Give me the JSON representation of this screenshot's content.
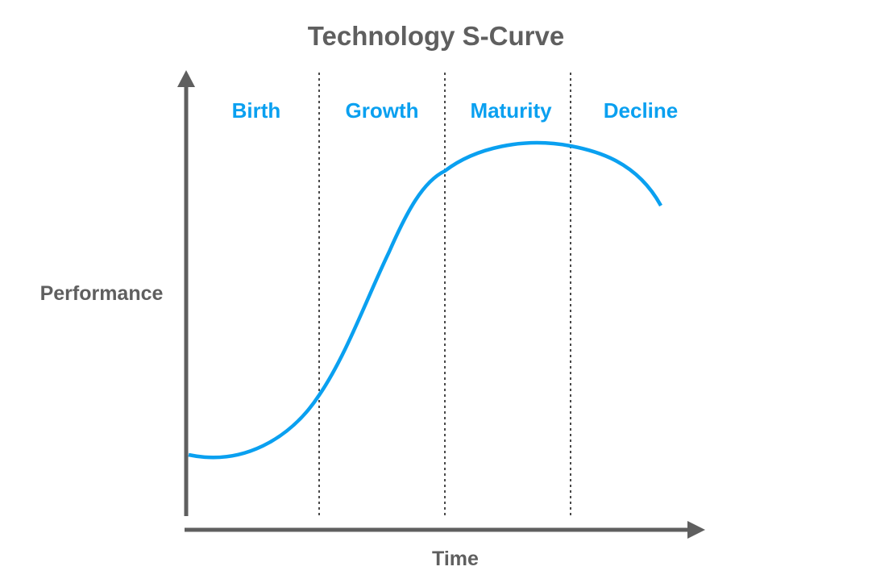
{
  "title": "Technology S-Curve",
  "x_axis_label": "Time",
  "y_axis_label": "Performance",
  "phases": [
    {
      "label": "Birth"
    },
    {
      "label": "Growth"
    },
    {
      "label": "Maturity"
    },
    {
      "label": "Decline"
    }
  ],
  "colors": {
    "curve": "#0aa0f0",
    "phase_text": "#0aa0f0",
    "axis": "#5f5f5f",
    "text": "#5f5f5f",
    "divider": "#4a4a4a"
  }
}
